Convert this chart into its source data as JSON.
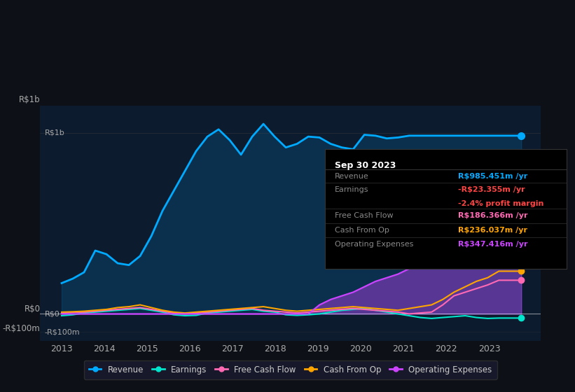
{
  "background_color": "#0d1117",
  "plot_bg_color": "#0d1b2e",
  "title": "Sep 30 2023",
  "ylabel_top": "R$1b",
  "y0_label": "R$0",
  "yneg_label": "-R$100m",
  "x_ticks": [
    2013,
    2014,
    2015,
    2016,
    2017,
    2018,
    2019,
    2020,
    2021,
    2022,
    2023
  ],
  "ylim": [
    -120,
    1100
  ],
  "info_box": {
    "date": "Sep 30 2023",
    "revenue_label": "Revenue",
    "revenue_value": "R$985.451m /yr",
    "revenue_color": "#00aaff",
    "earnings_label": "Earnings",
    "earnings_value": "-R$23.355m /yr",
    "earnings_color": "#ff4444",
    "margin_value": "-2.4% profit margin",
    "margin_color": "#ff4444",
    "fcf_label": "Free Cash Flow",
    "fcf_value": "R$186.366m /yr",
    "fcf_color": "#ff69b4",
    "cashop_label": "Cash From Op",
    "cashop_value": "R$236.037m /yr",
    "cashop_color": "#ffa500",
    "opex_label": "Operating Expenses",
    "opex_value": "R$347.416m /yr",
    "opex_color": "#cc44ff"
  },
  "series": {
    "revenue": {
      "color": "#00aaff",
      "label": "Revenue",
      "data": [
        170,
        195,
        230,
        350,
        330,
        280,
        270,
        320,
        430,
        570,
        680,
        790,
        900,
        980,
        1020,
        960,
        880,
        980,
        1050,
        980,
        920,
        940,
        980,
        975,
        940,
        920,
        910,
        990,
        985,
        970,
        975,
        985,
        985,
        985,
        985,
        985,
        985,
        985,
        985,
        985,
        985,
        985
      ]
    },
    "earnings": {
      "color": "#00e5cc",
      "label": "Earnings",
      "data": [
        -10,
        -5,
        5,
        10,
        15,
        20,
        25,
        30,
        20,
        10,
        -5,
        -10,
        -8,
        5,
        10,
        15,
        20,
        25,
        15,
        10,
        -5,
        -8,
        -5,
        0,
        10,
        20,
        25,
        30,
        20,
        10,
        0,
        -10,
        -20,
        -25,
        -20,
        -15,
        -10,
        -20,
        -25,
        -23,
        -23,
        -23
      ]
    },
    "free_cash_flow": {
      "color": "#ff69b4",
      "label": "Free Cash Flow",
      "data": [
        5,
        8,
        10,
        15,
        20,
        25,
        30,
        35,
        25,
        15,
        5,
        0,
        5,
        10,
        15,
        20,
        25,
        30,
        20,
        15,
        10,
        5,
        10,
        15,
        20,
        25,
        30,
        25,
        20,
        15,
        10,
        0,
        5,
        10,
        50,
        100,
        120,
        140,
        160,
        186,
        186,
        186
      ]
    },
    "cash_from_op": {
      "color": "#ffa500",
      "label": "Cash From Op",
      "data": [
        10,
        12,
        15,
        20,
        25,
        35,
        40,
        50,
        35,
        20,
        10,
        5,
        10,
        15,
        20,
        25,
        30,
        35,
        40,
        30,
        20,
        15,
        20,
        25,
        30,
        35,
        40,
        35,
        30,
        25,
        20,
        30,
        40,
        50,
        80,
        120,
        150,
        180,
        200,
        236,
        236,
        236
      ]
    },
    "operating_expenses": {
      "color": "#cc44ff",
      "label": "Operating Expenses",
      "data": [
        0,
        0,
        0,
        0,
        0,
        0,
        0,
        0,
        0,
        0,
        0,
        0,
        0,
        0,
        0,
        0,
        0,
        0,
        0,
        0,
        0,
        0,
        0,
        50,
        80,
        100,
        120,
        150,
        180,
        200,
        220,
        250,
        280,
        300,
        310,
        320,
        330,
        340,
        345,
        347,
        347,
        347
      ]
    }
  }
}
